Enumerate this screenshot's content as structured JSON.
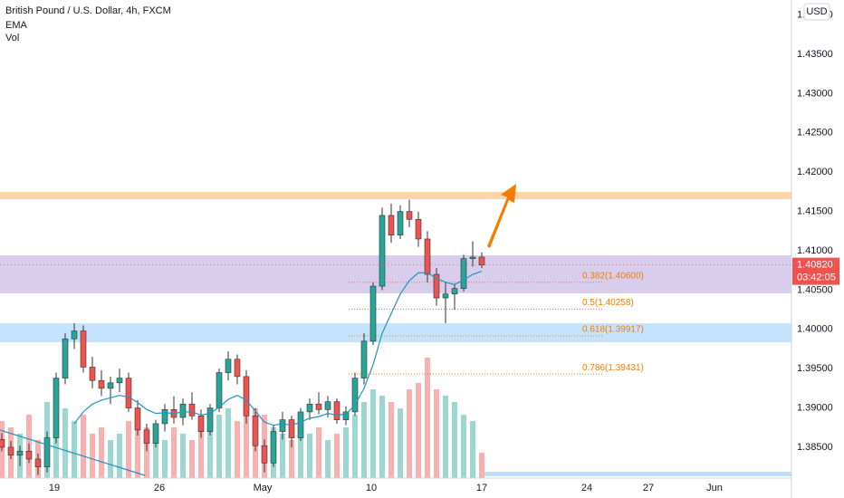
{
  "chart_data": {
    "type": "candlestick",
    "title": "British Pound / U.S. Dollar, 4h, FXCM",
    "indicators": [
      "EMA",
      "Vol"
    ],
    "currency": "USD",
    "xlim": [
      -0.2,
      87.2
    ],
    "xticks": [
      {
        "value": 5.8,
        "label": "19"
      },
      {
        "value": 17.4,
        "label": "26"
      },
      {
        "value": 28.8,
        "label": "May"
      },
      {
        "value": 40.8,
        "label": "10"
      },
      {
        "value": 53,
        "label": "17"
      },
      {
        "value": 64.6,
        "label": "24"
      },
      {
        "value": 71.4,
        "label": "27"
      },
      {
        "value": 78.7,
        "label": "Jun"
      }
    ],
    "ylim": [
      1.38108,
      1.44191
    ],
    "yticks": [
      {
        "value": 1.385,
        "label": "1.38500"
      },
      {
        "value": 1.39,
        "label": "1.39000"
      },
      {
        "value": 1.395,
        "label": "1.39500"
      },
      {
        "value": 1.4,
        "label": "1.40000"
      },
      {
        "value": 1.405,
        "label": "1.40500"
      },
      {
        "value": 1.41,
        "label": "1.41000"
      },
      {
        "value": 1.415,
        "label": "1.41500"
      },
      {
        "value": 1.42,
        "label": "1.42000"
      },
      {
        "value": 1.425,
        "label": "1.42500"
      },
      {
        "value": 1.43,
        "label": "1.43000"
      },
      {
        "value": 1.435,
        "label": "1.43500"
      },
      {
        "value": 1.44,
        "label": "1.44000"
      }
    ],
    "open": [
      1.386,
      1.385,
      1.384,
      1.3845,
      1.3835,
      1.3825,
      1.3862,
      1.3938,
      1.3988,
      1.3998,
      1.3952,
      1.3935,
      1.3925,
      1.3932,
      1.3938,
      1.39,
      1.3872,
      1.3855,
      1.388,
      1.3898,
      1.3888,
      1.3905,
      1.389,
      1.387,
      1.39,
      1.3945,
      1.3962,
      1.394,
      1.389,
      1.3852,
      1.383,
      1.387,
      1.3885,
      1.3862,
      1.3895,
      1.3905,
      1.3898,
      1.3908,
      1.3885,
      1.3895,
      1.3938,
      1.3985,
      1.4055,
      1.4145,
      1.412,
      1.415,
      1.414,
      1.4115,
      1.407,
      1.404,
      1.4045,
      1.4052,
      1.409,
      1.4092
    ],
    "high": [
      1.3868,
      1.3858,
      1.3852,
      1.3855,
      1.3842,
      1.387,
      1.3945,
      1.3995,
      1.4008,
      1.4005,
      1.3965,
      1.3948,
      1.394,
      1.395,
      1.3945,
      1.391,
      1.388,
      1.3885,
      1.3905,
      1.3915,
      1.3912,
      1.392,
      1.3898,
      1.3905,
      1.395,
      1.3972,
      1.3968,
      1.3948,
      1.39,
      1.386,
      1.3878,
      1.3895,
      1.389,
      1.39,
      1.3912,
      1.392,
      1.3915,
      1.3912,
      1.3902,
      1.3945,
      1.3995,
      1.406,
      1.4155,
      1.416,
      1.4158,
      1.4165,
      1.415,
      1.4125,
      1.4078,
      1.406,
      1.4058,
      1.4095,
      1.4112,
      1.4098
    ],
    "low": [
      1.3845,
      1.3835,
      1.3826,
      1.383,
      1.3815,
      1.3818,
      1.3855,
      1.393,
      1.3975,
      1.3945,
      1.3925,
      1.3915,
      1.3905,
      1.392,
      1.3895,
      1.3865,
      1.3845,
      1.385,
      1.387,
      1.388,
      1.3878,
      1.3885,
      1.3862,
      1.3865,
      1.3895,
      1.3935,
      1.393,
      1.388,
      1.3845,
      1.3818,
      1.3825,
      1.386,
      1.385,
      1.3858,
      1.3885,
      1.3892,
      1.3888,
      1.388,
      1.3878,
      1.389,
      1.393,
      1.398,
      1.405,
      1.411,
      1.4115,
      1.413,
      1.4105,
      1.406,
      1.403,
      1.4008,
      1.4025,
      1.4048,
      1.408,
      1.4078
    ],
    "close": [
      1.385,
      1.384,
      1.3845,
      1.3835,
      1.3825,
      1.3862,
      1.3938,
      1.3988,
      1.3998,
      1.3952,
      1.3935,
      1.3925,
      1.3932,
      1.3938,
      1.39,
      1.3872,
      1.3855,
      1.388,
      1.3898,
      1.3888,
      1.3905,
      1.389,
      1.387,
      1.39,
      1.3945,
      1.3962,
      1.394,
      1.389,
      1.3852,
      1.383,
      1.387,
      1.3885,
      1.3862,
      1.3895,
      1.3905,
      1.3898,
      1.3908,
      1.3885,
      1.3895,
      1.3938,
      1.3985,
      1.4055,
      1.4145,
      1.412,
      1.415,
      1.414,
      1.4115,
      1.407,
      1.404,
      1.4045,
      1.4052,
      1.409,
      1.4092,
      1.4082
    ],
    "volume": [
      45,
      40,
      35,
      50,
      30,
      60,
      70,
      55,
      45,
      50,
      35,
      40,
      30,
      35,
      45,
      50,
      40,
      35,
      30,
      40,
      35,
      30,
      45,
      40,
      50,
      55,
      45,
      60,
      55,
      50,
      40,
      35,
      30,
      45,
      35,
      40,
      30,
      35,
      40,
      50,
      60,
      70,
      65,
      60,
      55,
      70,
      75,
      95,
      70,
      65,
      60,
      50,
      45,
      20
    ],
    "volume_lim": [
      0,
      100
    ],
    "ema": [
      null,
      null,
      null,
      null,
      null,
      null,
      null,
      null,
      1.388,
      1.3895,
      1.3905,
      1.391,
      1.3913,
      1.3916,
      1.3914,
      1.3907,
      1.3898,
      1.3893,
      1.3894,
      1.3893,
      1.3895,
      1.3895,
      1.3891,
      1.3893,
      1.3901,
      1.3911,
      1.3916,
      1.391,
      1.3896,
      1.3882,
      1.3878,
      1.388,
      1.3878,
      1.3882,
      1.3887,
      1.3889,
      1.3893,
      1.3891,
      1.3892,
      1.3904,
      1.3925,
      1.3955,
      1.3995,
      1.402,
      1.4045,
      1.4062,
      1.4072,
      1.4072,
      1.4065,
      1.406,
      1.4057,
      1.4063,
      1.407,
      1.4074
    ],
    "ema_color": "#2196c4",
    "up_color": "#26a69a",
    "down_color": "#ef5350",
    "zones": [
      {
        "low": 1.41657,
        "high": 1.41749,
        "color": "#ffcc99"
      },
      {
        "low": 1.40459,
        "high": 1.40942,
        "color": "#d1c4e9"
      },
      {
        "low": 1.39836,
        "high": 1.40078,
        "color": "#bbdefb"
      }
    ],
    "fib": [
      {
        "label": "0.382(1.40600)",
        "value": 1.406
      },
      {
        "label": "0.5(1.40258)",
        "value": 1.40258
      },
      {
        "label": "0.618(1.39917)",
        "value": 1.39917
      },
      {
        "label": "0.786(1.39431)",
        "value": 1.39431
      }
    ],
    "last_price": {
      "value": 1.4082,
      "label": "1.40820"
    },
    "countdown": "03:42:05"
  }
}
